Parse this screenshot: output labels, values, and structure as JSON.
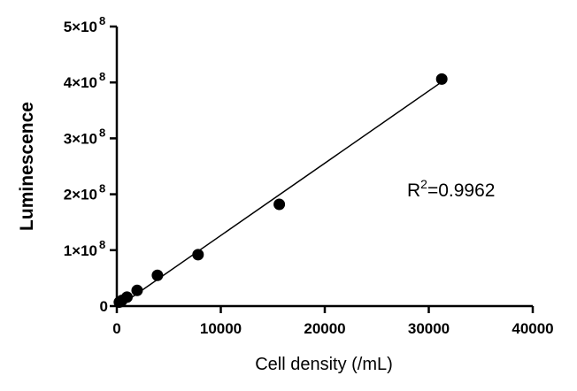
{
  "chart_data": {
    "type": "scatter",
    "xlabel": "Cell density (/mL)",
    "ylabel": "Luminescence",
    "xlim": [
      0,
      40000
    ],
    "ylim": [
      0,
      500000000
    ],
    "x_ticks": [
      {
        "value": 0,
        "label": "0"
      },
      {
        "value": 10000,
        "label": "10000"
      },
      {
        "value": 20000,
        "label": "20000"
      },
      {
        "value": 30000,
        "label": "30000"
      },
      {
        "value": 40000,
        "label": "40000"
      }
    ],
    "y_ticks": [
      {
        "value": 0,
        "label": "0",
        "exp": ""
      },
      {
        "value": 100000000,
        "label": "1×10",
        "exp": "8"
      },
      {
        "value": 200000000,
        "label": "2×10",
        "exp": "8"
      },
      {
        "value": 300000000,
        "label": "3×10",
        "exp": "8"
      },
      {
        "value": 400000000,
        "label": "4×10",
        "exp": "8"
      },
      {
        "value": 500000000,
        "label": "5×10",
        "exp": "8"
      }
    ],
    "points": [
      {
        "x": 244,
        "y": 7000000
      },
      {
        "x": 488,
        "y": 10000000
      },
      {
        "x": 977,
        "y": 16000000
      },
      {
        "x": 1953,
        "y": 28000000
      },
      {
        "x": 3906,
        "y": 55000000
      },
      {
        "x": 7813,
        "y": 92000000
      },
      {
        "x": 15625,
        "y": 182000000
      },
      {
        "x": 31250,
        "y": 406000000
      }
    ],
    "fit_line": {
      "x": [
        0,
        31250
      ],
      "y": [
        -3000000,
        401000000
      ]
    },
    "annotation": {
      "text": "R",
      "sup": "2",
      "rest": "=0.9962"
    },
    "grid": false,
    "legend": "none"
  }
}
